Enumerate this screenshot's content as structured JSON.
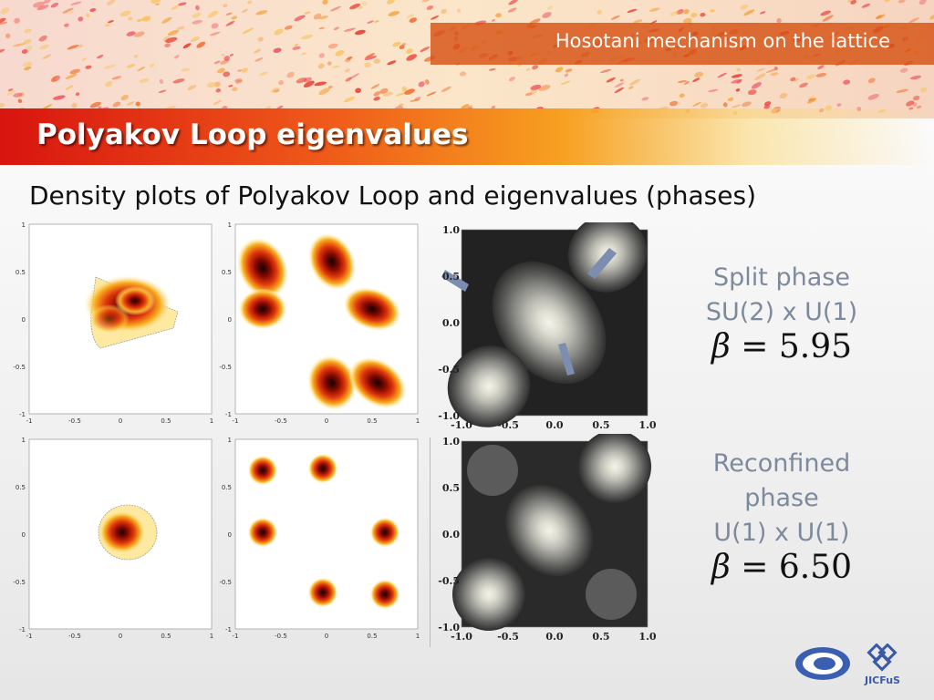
{
  "header": {
    "tagline": "Hosotani mechanism on the lattice"
  },
  "title": "Polyakov Loop eigenvalues",
  "subtitle": "Density plots of Polyakov Loop and eigenvalues (phases)",
  "panels": {
    "heat_ticks_y": [
      "1",
      "0.5",
      "0",
      "-0.5",
      "-1"
    ],
    "heat_ticks_x": [
      "-1",
      "-0.5",
      "0",
      "0.5",
      "1"
    ],
    "gray_ticks_y": [
      "1.0",
      "0.5",
      "0.0",
      "-0.5",
      "-1.0"
    ],
    "gray_ticks_x": [
      "-1.0",
      "-0.5",
      "0.0",
      "0.5",
      "1.0"
    ]
  },
  "phases": [
    {
      "line1": "Split phase",
      "line2": "SU(2) x U(1)",
      "beta_symbol": "β",
      "beta_eq": " = ",
      "beta_value": "5.95"
    },
    {
      "line1": "Reconfined",
      "line2": "phase",
      "line3": "U(1) x U(1)",
      "beta_symbol": "β",
      "beta_eq": " = ",
      "beta_value": "6.50"
    }
  ],
  "logos": {
    "right_logo_text": "JICFuS"
  },
  "colors": {
    "accent_red": "#d8140f",
    "accent_orange": "#ef5a1a",
    "side_text": "#7d8a9c"
  }
}
